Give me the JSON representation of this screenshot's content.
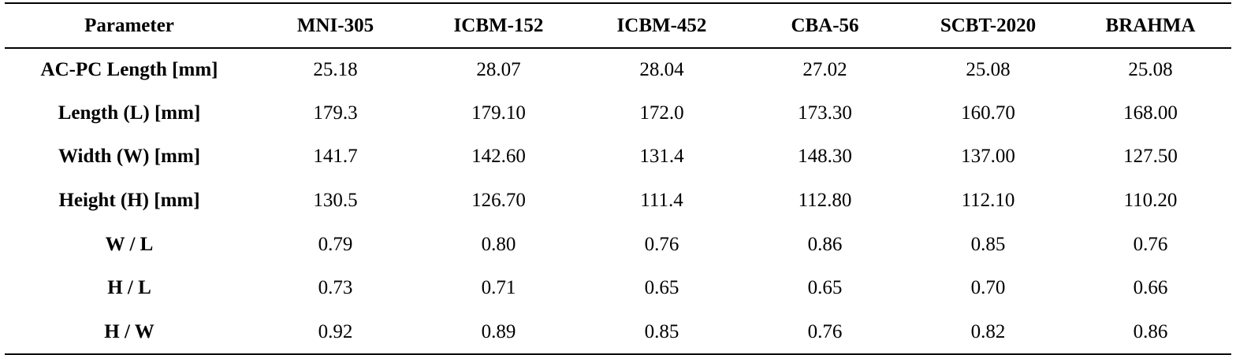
{
  "table": {
    "headers": [
      "Parameter",
      "MNI-305",
      "ICBM-152",
      "ICBM-452",
      "CBA-56",
      "SCBT-2020",
      "BRAHMA"
    ],
    "rows": [
      [
        "AC-PC Length [mm]",
        "25.18",
        "28.07",
        "28.04",
        "27.02",
        "25.08",
        "25.08"
      ],
      [
        "Length (L) [mm]",
        "179.3",
        "179.10",
        "172.0",
        "173.30",
        "160.70",
        "168.00"
      ],
      [
        "Width (W) [mm]",
        "141.7",
        "142.60",
        "131.4",
        "148.30",
        "137.00",
        "127.50"
      ],
      [
        "Height (H) [mm]",
        "130.5",
        "126.70",
        "111.4",
        "112.80",
        "112.10",
        "110.20"
      ],
      [
        "W / L",
        "0.79",
        "0.80",
        "0.76",
        "0.86",
        "0.85",
        "0.76"
      ],
      [
        "H / L",
        "0.73",
        "0.71",
        "0.65",
        "0.65",
        "0.70",
        "0.66"
      ],
      [
        "H / W",
        "0.92",
        "0.89",
        "0.85",
        "0.76",
        "0.82",
        "0.86"
      ]
    ]
  }
}
